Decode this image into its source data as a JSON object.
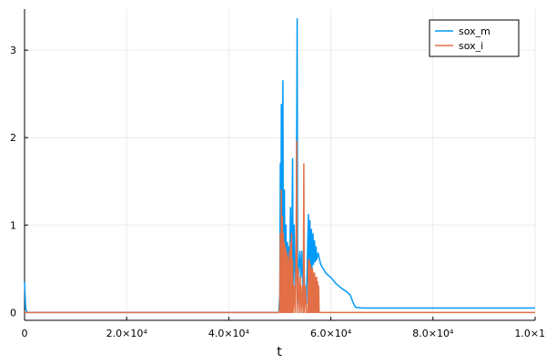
{
  "chart_data": {
    "type": "line",
    "xlabel": "t",
    "xlim": [
      0,
      100000
    ],
    "ylim": [
      -0.09,
      3.47
    ],
    "xticks": [
      0,
      {
        "value": 20000,
        "label": "2.0×10⁴"
      },
      {
        "value": 40000,
        "label": "4.0×10⁴"
      },
      {
        "value": 60000,
        "label": "6.0×10⁴"
      },
      {
        "value": 80000,
        "label": "8.0×10⁴"
      },
      {
        "value": 100000,
        "label": "1.0×10⁵"
      }
    ],
    "yticks": [
      0,
      1,
      2,
      3
    ],
    "grid": true,
    "legend": "top-right",
    "series": [
      {
        "name": "sox_m",
        "color": "#009af9",
        "x": [
          0,
          200,
          500,
          49800,
          50000,
          50100,
          50200,
          50300,
          50400,
          50600,
          50700,
          50900,
          51000,
          51200,
          51300,
          51500,
          51600,
          51800,
          51900,
          52100,
          52200,
          52400,
          52500,
          52600,
          52800,
          53000,
          53200,
          53400,
          53500,
          53700,
          53900,
          54100,
          54300,
          54500,
          54700,
          54900,
          55200,
          55600,
          55700,
          55900,
          56000,
          56200,
          56300,
          56500,
          56600,
          56800,
          56900,
          57100,
          57200,
          57500,
          58000,
          59000,
          60000,
          61000,
          62000,
          63000,
          63800,
          64300,
          64800,
          66000,
          100000
        ],
        "values": [
          0.35,
          0.05,
          0,
          0,
          0.2,
          1.7,
          0.1,
          2.38,
          0.2,
          2.65,
          0.3,
          1.4,
          0.4,
          1.0,
          0.4,
          0.8,
          0.5,
          0.75,
          0.5,
          1.2,
          0.3,
          1.1,
          1.76,
          0.3,
          1.0,
          0.2,
          0.5,
          3.36,
          0.1,
          0.5,
          0.7,
          0.4,
          0.7,
          0.3,
          0.6,
          0.2,
          0.1,
          1.12,
          0.4,
          1.05,
          0.45,
          0.95,
          0.5,
          0.9,
          0.55,
          0.82,
          0.58,
          0.75,
          0.6,
          0.68,
          0.55,
          0.45,
          0.4,
          0.33,
          0.28,
          0.24,
          0.2,
          0.12,
          0.06,
          0.05,
          0.05
        ]
      },
      {
        "name": "sox_i",
        "color": "#e26f46",
        "x": [
          0,
          49900,
          50000,
          50100,
          50200,
          50300,
          50400,
          50500,
          50600,
          50700,
          50800,
          50900,
          51000,
          51100,
          51200,
          51300,
          51400,
          51500,
          51600,
          51700,
          51800,
          51900,
          52000,
          52100,
          52200,
          52300,
          52400,
          52500,
          52600,
          52800,
          53000,
          53200,
          53300,
          53400,
          53600,
          53800,
          54000,
          54200,
          54400,
          54600,
          54700,
          54800,
          55000,
          55200,
          55500,
          55600,
          55700,
          55800,
          55900,
          56000,
          56100,
          56200,
          56300,
          56400,
          56500,
          56600,
          56700,
          56800,
          56900,
          57000,
          57100,
          57200,
          57300,
          57400,
          57500,
          57600,
          57700,
          57800,
          100000
        ],
        "values": [
          0,
          0,
          0.1,
          0.9,
          0,
          1.4,
          0,
          1.1,
          0,
          0.9,
          0,
          0.8,
          0,
          0.75,
          0,
          0.7,
          0,
          0.65,
          0,
          0.6,
          0,
          0.7,
          0,
          0.8,
          0,
          0.9,
          0,
          0.6,
          0,
          0.3,
          0,
          0.8,
          1.96,
          0,
          0.5,
          0,
          0.4,
          0,
          0.3,
          0,
          1.7,
          0,
          0.3,
          0,
          0,
          0.6,
          0,
          0.6,
          0,
          0.55,
          0,
          0.5,
          0,
          0.5,
          0,
          0.45,
          0,
          0.45,
          0,
          0.4,
          0,
          0.4,
          0,
          0.35,
          0,
          0.3,
          0,
          0,
          0
        ]
      }
    ]
  }
}
